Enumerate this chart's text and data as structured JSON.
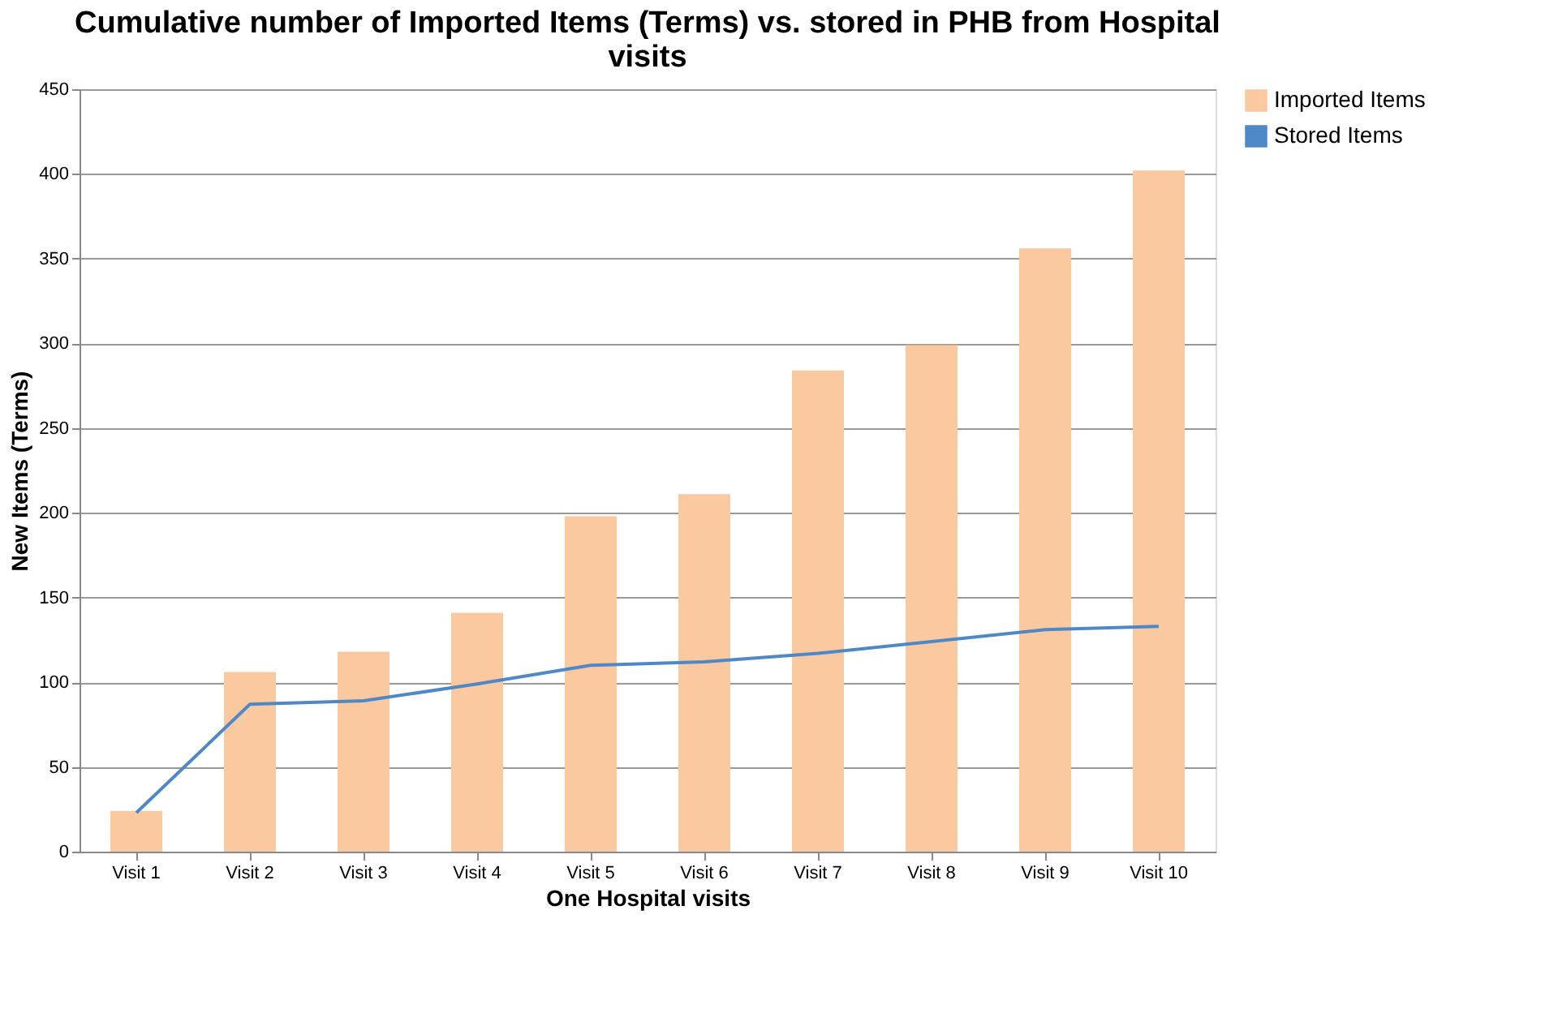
{
  "chart_data": {
    "type": "bar",
    "title": "Cumulative number of Imported Items (Terms) vs. stored in PHB from Hospital visits",
    "xlabel": "One Hospital visits",
    "ylabel": "New Items (Terms)",
    "categories": [
      "Visit 1",
      "Visit 2",
      "Visit 3",
      "Visit 4",
      "Visit 5",
      "Visit 6",
      "Visit 7",
      "Visit 8",
      "Visit 9",
      "Visit 10"
    ],
    "series": [
      {
        "name": "Imported Items",
        "color": "#fac9a0",
        "values": [
          24,
          106,
          118,
          141,
          198,
          211,
          284,
          299,
          356,
          402
        ]
      },
      {
        "name": "Stored Items",
        "type": "line",
        "color": "#4f88c6",
        "values": [
          23,
          87,
          89,
          99,
          110,
          112,
          117,
          124,
          131,
          133
        ]
      }
    ],
    "ylim": [
      0,
      450
    ],
    "yticks": [
      0,
      50,
      100,
      150,
      200,
      250,
      300,
      350,
      400,
      450
    ],
    "grid": "y",
    "legend": "right",
    "marker": "none",
    "line_style": "solid"
  }
}
